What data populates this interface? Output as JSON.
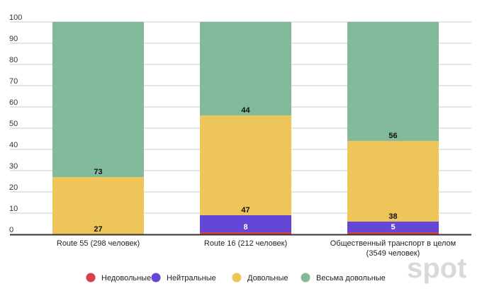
{
  "chart_data": {
    "type": "bar",
    "stacked": true,
    "categories": [
      [
        "Route 55 (298 человек)"
      ],
      [
        "Route 16 (212 человек)"
      ],
      [
        "Общественный транспорт в целом",
        "(3549 человек)"
      ]
    ],
    "series": [
      {
        "name": "Недовольные",
        "color": "#d9414a",
        "values": [
          0,
          1,
          1
        ],
        "labels": [
          "",
          "",
          ""
        ]
      },
      {
        "name": "Нейтральные",
        "color": "#6547d8",
        "values": [
          0,
          8,
          5
        ],
        "labels": [
          "",
          "8",
          "5"
        ]
      },
      {
        "name": "Довольные",
        "color": "#eec55b",
        "values": [
          27,
          47,
          38
        ],
        "labels": [
          "27",
          "47",
          "38"
        ]
      },
      {
        "name": "Весьма довольные",
        "color": "#82bb9b",
        "values": [
          73,
          44,
          56
        ],
        "labels": [
          "73",
          "44",
          "56"
        ]
      }
    ],
    "ylim": [
      0,
      100
    ],
    "yticks": [
      0,
      10,
      20,
      30,
      40,
      50,
      60,
      70,
      80,
      90,
      100
    ],
    "grid": true,
    "legend": "bottom",
    "title": "",
    "xlabel": "",
    "ylabel": ""
  },
  "watermark": "spot"
}
